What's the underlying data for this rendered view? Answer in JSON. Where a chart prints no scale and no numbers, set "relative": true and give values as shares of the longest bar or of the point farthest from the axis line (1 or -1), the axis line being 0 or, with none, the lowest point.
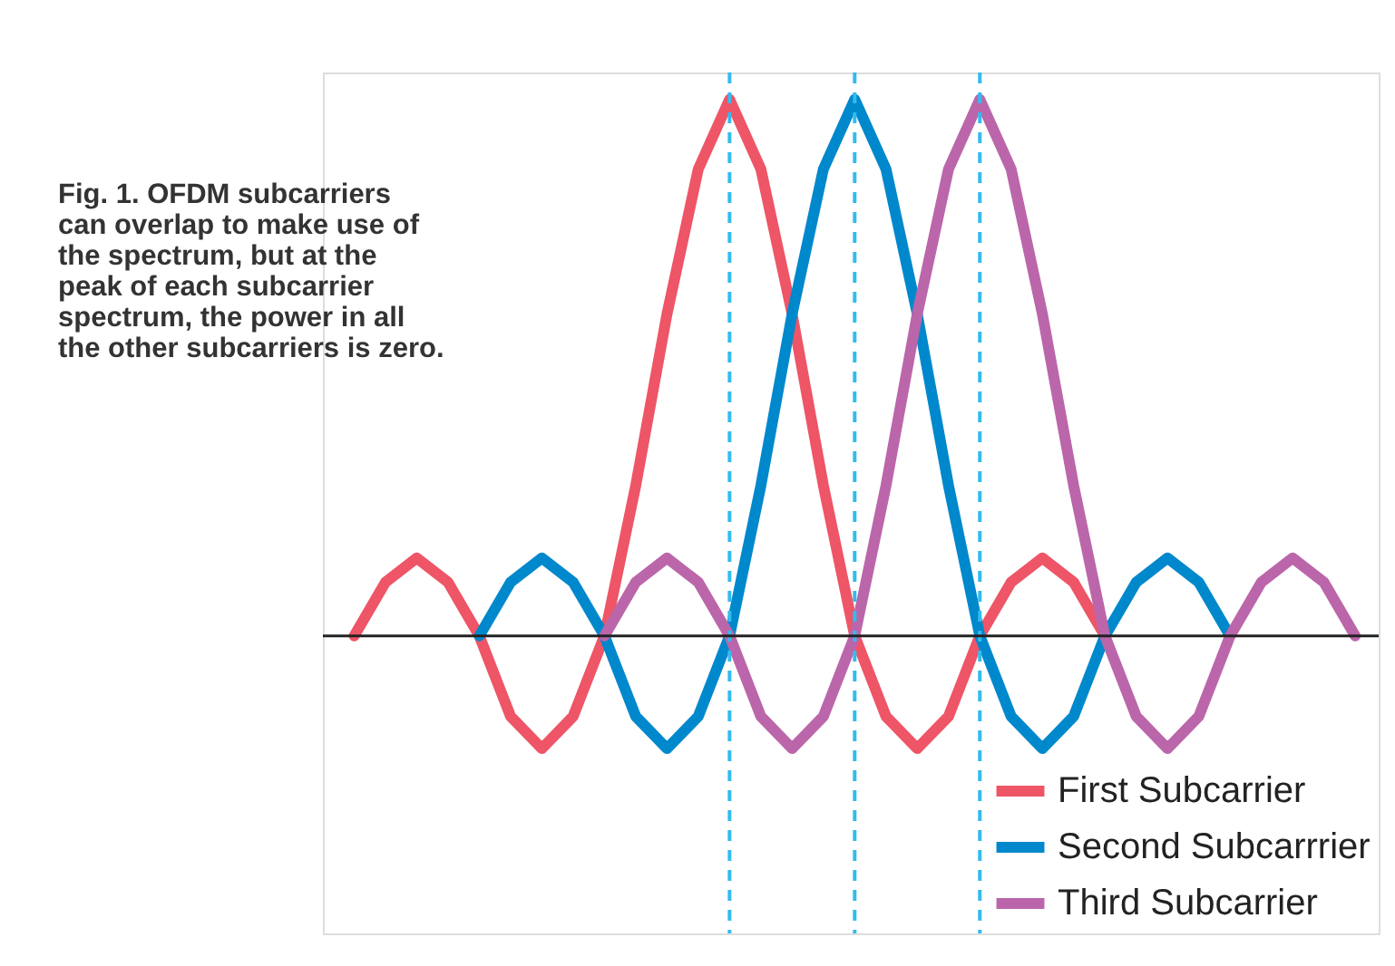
{
  "chart_data": {
    "type": "line",
    "relative": true,
    "tick_labels": false,
    "grid": "x",
    "legend": "bottom right",
    "marker": "none",
    "line_style": "solid",
    "categories": [
      null,
      null,
      null,
      null,
      null,
      null,
      null,
      null,
      null,
      null,
      null,
      null,
      null,
      null,
      null,
      null,
      null,
      null,
      null,
      null,
      null,
      null,
      null,
      null,
      null,
      null,
      null,
      null,
      null,
      null,
      null,
      null,
      null
    ],
    "annotations": [
      "Fig. 1. OFDM subcarriers\ncan overlap to make use of\nthe spectrum, but at the\npeak of each subcarrier\nspectrum, the power in all\nthe other subcarriers is zero."
    ],
    "series": [
      {
        "name": "First Subcarrier",
        "color": "#ee5566",
        "values": [
          0,
          0.1,
          0.145,
          0.1,
          0,
          -0.15,
          -0.21,
          -0.15,
          0,
          0.28,
          0.6,
          0.87,
          1,
          0.87,
          0.6,
          0.28,
          0,
          -0.15,
          -0.21,
          -0.15,
          0,
          0.1,
          0.145,
          0.1,
          0,
          null,
          null,
          null,
          null,
          null,
          null,
          null,
          null
        ]
      },
      {
        "name": "Second Subcarrrier",
        "color": "#0088cc",
        "values": [
          null,
          null,
          null,
          null,
          0,
          0.1,
          0.145,
          0.1,
          0,
          -0.15,
          -0.21,
          -0.15,
          0,
          0.28,
          0.6,
          0.87,
          1,
          0.87,
          0.6,
          0.28,
          0,
          -0.15,
          -0.21,
          -0.15,
          0,
          0.1,
          0.145,
          0.1,
          0,
          null,
          null,
          null,
          null
        ]
      },
      {
        "name": "Third Subcarrier",
        "color": "#bb66aa",
        "values": [
          null,
          null,
          null,
          null,
          null,
          null,
          null,
          null,
          0,
          0.1,
          0.145,
          0.1,
          0,
          -0.15,
          -0.21,
          -0.15,
          0,
          0.28,
          0.6,
          0.87,
          1,
          0.87,
          0.6,
          0.28,
          0,
          -0.15,
          -0.21,
          -0.15,
          0,
          0.1,
          0.145,
          0.1,
          0
        ]
      }
    ]
  }
}
